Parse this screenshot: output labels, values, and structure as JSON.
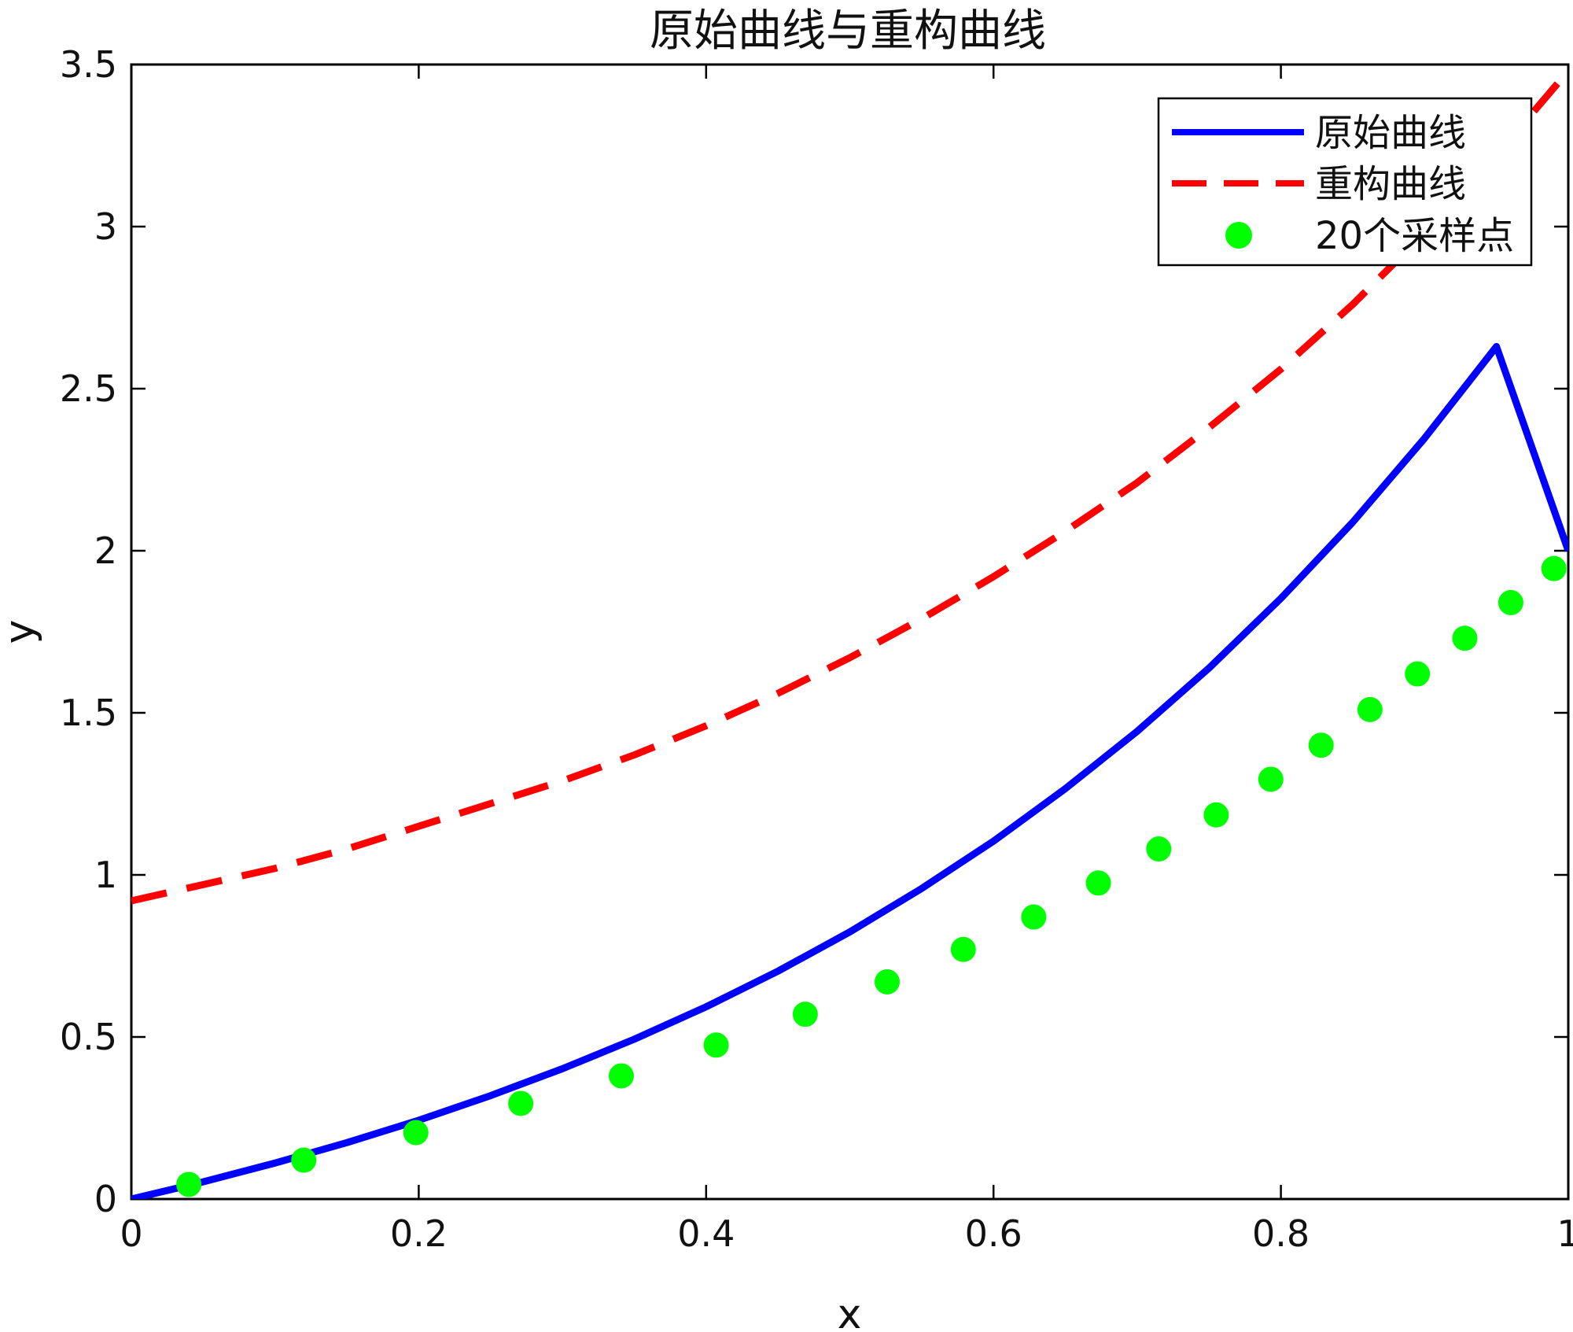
{
  "chart_data": {
    "type": "line",
    "title": "原始曲线与重构曲线",
    "xlabel": "x",
    "ylabel": "y",
    "xlim": [
      0,
      1
    ],
    "ylim": [
      0,
      3.5
    ],
    "xticks": [
      0,
      0.2,
      0.4,
      0.6,
      0.8,
      1
    ],
    "xtick_labels": [
      "0",
      "0.2",
      "0.4",
      "0.6",
      "0.8",
      "1"
    ],
    "yticks": [
      0,
      0.5,
      1,
      1.5,
      2,
      2.5,
      3,
      3.5
    ],
    "ytick_labels": [
      "0",
      "0.5",
      "1",
      "1.5",
      "2",
      "2.5",
      "3",
      "3.5"
    ],
    "grid": false,
    "legend_position": "top-right",
    "series": [
      {
        "name": "原始曲线",
        "style": "solid",
        "color": "#0000ff",
        "x": [
          0,
          0.05,
          0.1,
          0.15,
          0.2,
          0.25,
          0.3,
          0.35,
          0.4,
          0.45,
          0.5,
          0.55,
          0.6,
          0.65,
          0.7,
          0.75,
          0.8,
          0.85,
          0.9,
          0.95,
          1
        ],
        "y": [
          0,
          0.053,
          0.111,
          0.174,
          0.243,
          0.319,
          0.402,
          0.493,
          0.593,
          0.703,
          0.824,
          0.958,
          1.104,
          1.266,
          1.443,
          1.638,
          1.853,
          2.088,
          2.347,
          2.63,
          2.0
        ]
      },
      {
        "name": "重构曲线",
        "style": "dashed",
        "color": "#ff0000",
        "x": [
          0,
          0.05,
          0.1,
          0.15,
          0.2,
          0.25,
          0.3,
          0.35,
          0.4,
          0.45,
          0.5,
          0.55,
          0.6,
          0.65,
          0.7,
          0.75,
          0.8,
          0.85,
          0.9,
          0.95,
          1
        ],
        "y": [
          0.92,
          0.97,
          1.02,
          1.08,
          1.15,
          1.22,
          1.29,
          1.37,
          1.46,
          1.56,
          1.67,
          1.79,
          1.92,
          2.06,
          2.21,
          2.38,
          2.56,
          2.76,
          2.98,
          3.22,
          3.48
        ]
      },
      {
        "name": "20个采样点",
        "style": "markers",
        "color": "#00ff00",
        "x": [
          0.04,
          0.12,
          0.198,
          0.271,
          0.341,
          0.407,
          0.469,
          0.526,
          0.579,
          0.628,
          0.673,
          0.715,
          0.755,
          0.793,
          0.828,
          0.862,
          0.895,
          0.928,
          0.96,
          0.99
        ],
        "y": [
          0.045,
          0.12,
          0.205,
          0.295,
          0.38,
          0.475,
          0.57,
          0.67,
          0.77,
          0.87,
          0.975,
          1.08,
          1.185,
          1.295,
          1.4,
          1.51,
          1.62,
          1.73,
          1.84,
          1.945
        ]
      }
    ]
  }
}
